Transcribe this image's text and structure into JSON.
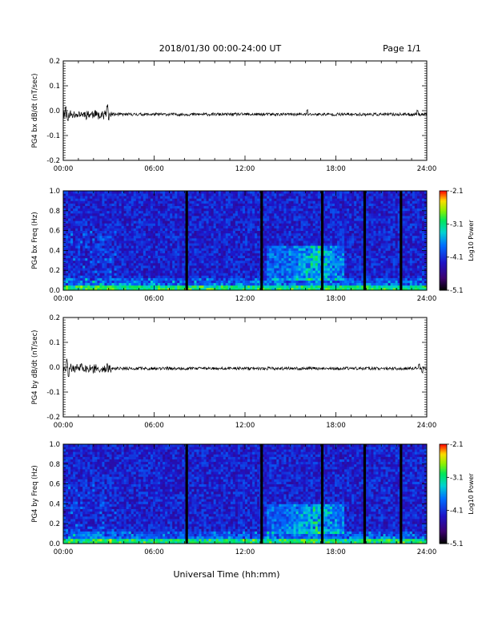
{
  "header": {
    "title": "2018/01/30  00:00-24:00 UT",
    "page": "Page 1/1"
  },
  "footer": {
    "xlabel": "Universal Time (hh:mm)"
  },
  "chart_data": [
    {
      "type": "line",
      "ylabel": "PG4 bx dB/dt (nT/sec)",
      "xlim": [
        0,
        24
      ],
      "ylim": [
        -0.2,
        0.2
      ],
      "x_ticks": [
        "00:00",
        "06:00",
        "12:00",
        "18:00",
        "24:00"
      ],
      "y_ticks": [
        "0.2",
        "0.1",
        "0.0",
        "-0.1",
        "-0.2"
      ],
      "series": [
        {
          "baseline": -0.015,
          "spikes": [
            [
              0.15,
              0.035
            ],
            [
              0.3,
              -0.03
            ],
            [
              2.9,
              0.04
            ],
            [
              3.0,
              -0.03
            ],
            [
              16.1,
              0.02
            ],
            [
              23.4,
              0.02
            ]
          ]
        }
      ],
      "grid": false
    },
    {
      "type": "heatmap",
      "ylabel": "PG4 bx Freq (Hz)",
      "xlim": [
        0,
        24
      ],
      "ylim": [
        0,
        1.0
      ],
      "x_ticks": [
        "00:00",
        "06:00",
        "12:00",
        "18:00",
        "24:00"
      ],
      "y_ticks": [
        "1.0",
        "0.8",
        "0.6",
        "0.4",
        "0.2",
        "0.0"
      ],
      "colorbar": {
        "label": "Log10 Power",
        "ticks": [
          "-2.1",
          "-3.1",
          "-4.1",
          "-5.1"
        ],
        "range": [
          -5.1,
          -2.1
        ]
      },
      "data_gaps_hours": [
        8.15,
        13.1,
        17.1,
        19.9,
        22.3
      ],
      "enhancement_band_hz": [
        0.1,
        0.45
      ],
      "enhancement_time_hours": [
        13.5,
        18.5
      ]
    },
    {
      "type": "line",
      "ylabel": "PG4 by dB/dt (nT/sec)",
      "xlim": [
        0,
        24
      ],
      "ylim": [
        -0.2,
        0.2
      ],
      "x_ticks": [
        "00:00",
        "06:00",
        "12:00",
        "18:00",
        "24:00"
      ],
      "y_ticks": [
        "0.2",
        "0.1",
        "0.0",
        "-0.1",
        "-0.2"
      ],
      "series": [
        {
          "baseline": -0.005,
          "spikes": [
            [
              0.25,
              0.04
            ],
            [
              0.35,
              -0.035
            ],
            [
              1.2,
              0.02
            ],
            [
              2.9,
              0.02
            ],
            [
              23.5,
              0.02
            ],
            [
              23.7,
              -0.02
            ]
          ]
        }
      ],
      "grid": false
    },
    {
      "type": "heatmap",
      "ylabel": "PG4 by Freq (Hz)",
      "xlim": [
        0,
        24
      ],
      "ylim": [
        0,
        1.0
      ],
      "x_ticks": [
        "00:00",
        "06:00",
        "12:00",
        "18:00",
        "24:00"
      ],
      "y_ticks": [
        "1.0",
        "0.8",
        "0.6",
        "0.4",
        "0.2",
        "0.0"
      ],
      "colorbar": {
        "label": "Log10 Power",
        "ticks": [
          "-2.1",
          "-3.1",
          "-4.1",
          "-5.1"
        ],
        "range": [
          -5.1,
          -2.1
        ]
      },
      "data_gaps_hours": [
        8.15,
        13.1,
        17.1,
        19.9,
        22.3
      ],
      "enhancement_band_hz": [
        0.1,
        0.4
      ],
      "enhancement_time_hours": [
        13.5,
        18.5
      ]
    }
  ]
}
